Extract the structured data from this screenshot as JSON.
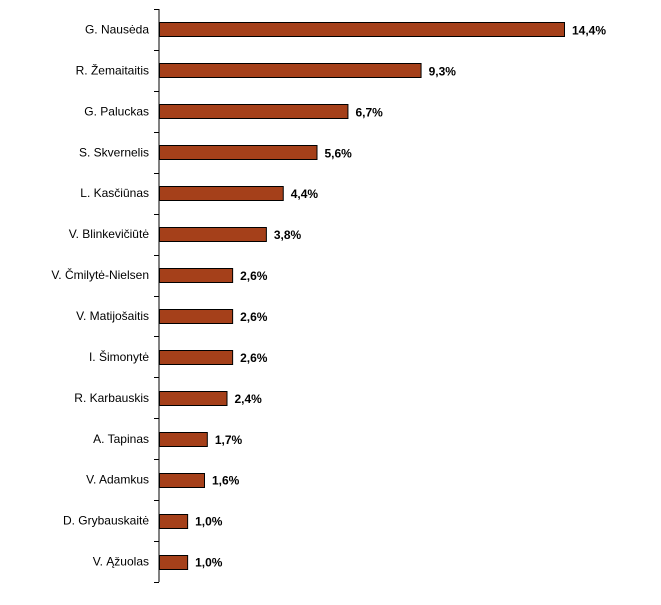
{
  "chart_data": {
    "type": "bar",
    "orientation": "horizontal",
    "categories": [
      "G. Nausėda",
      "R. Žemaitaitis",
      "G. Paluckas",
      "S. Skvernelis",
      "L. Kasčiūnas",
      "V. Blinkevičiūtė",
      "V. Čmilytė-Nielsen",
      "V. Matijošaitis",
      "I. Šimonytė",
      "R. Karbauskis",
      "A. Tapinas",
      "V. Adamkus",
      "D. Grybauskaitė",
      "V. Ąžuolas"
    ],
    "values": [
      14.4,
      9.3,
      6.7,
      5.6,
      4.4,
      3.8,
      2.6,
      2.6,
      2.6,
      2.4,
      1.7,
      1.6,
      1.0,
      1.0
    ],
    "value_labels": [
      "14,4%",
      "9,3%",
      "6,7%",
      "5,6%",
      "4,4%",
      "3,8%",
      "2,6%",
      "2,6%",
      "2,6%",
      "2,4%",
      "1,7%",
      "1,6%",
      "1,0%",
      "1,0%"
    ],
    "xlim": [
      0,
      16
    ],
    "grid": false,
    "legend": "none",
    "bar_color": "#A5401A",
    "bar_outline": "#000000"
  }
}
